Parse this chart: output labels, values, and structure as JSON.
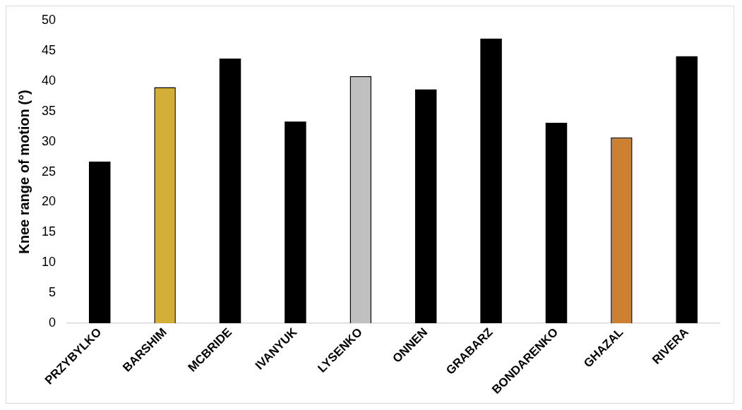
{
  "chart_data": {
    "type": "bar",
    "ylabel": "Knee range of motion (°)",
    "categories": [
      "PRZYBYLKO",
      "BARSHIM",
      "MCBRIDE",
      "IVANYUK",
      "LYSENKO",
      "ONNEN",
      "GRABARZ",
      "BONDARENKO",
      "GHAZAL",
      "RIVERA"
    ],
    "values": [
      26.7,
      39.0,
      43.7,
      33.3,
      40.8,
      38.6,
      47.0,
      33.1,
      30.7,
      44.1
    ],
    "colors": [
      "#000000",
      "#d4af37",
      "#000000",
      "#000000",
      "#c0c0c0",
      "#000000",
      "#000000",
      "#000000",
      "#cd7f32",
      "#000000"
    ],
    "ylim": [
      0,
      50
    ],
    "yticks": [
      0,
      5,
      10,
      15,
      20,
      25,
      30,
      35,
      40,
      45,
      50
    ],
    "grid": false,
    "legend": false
  }
}
